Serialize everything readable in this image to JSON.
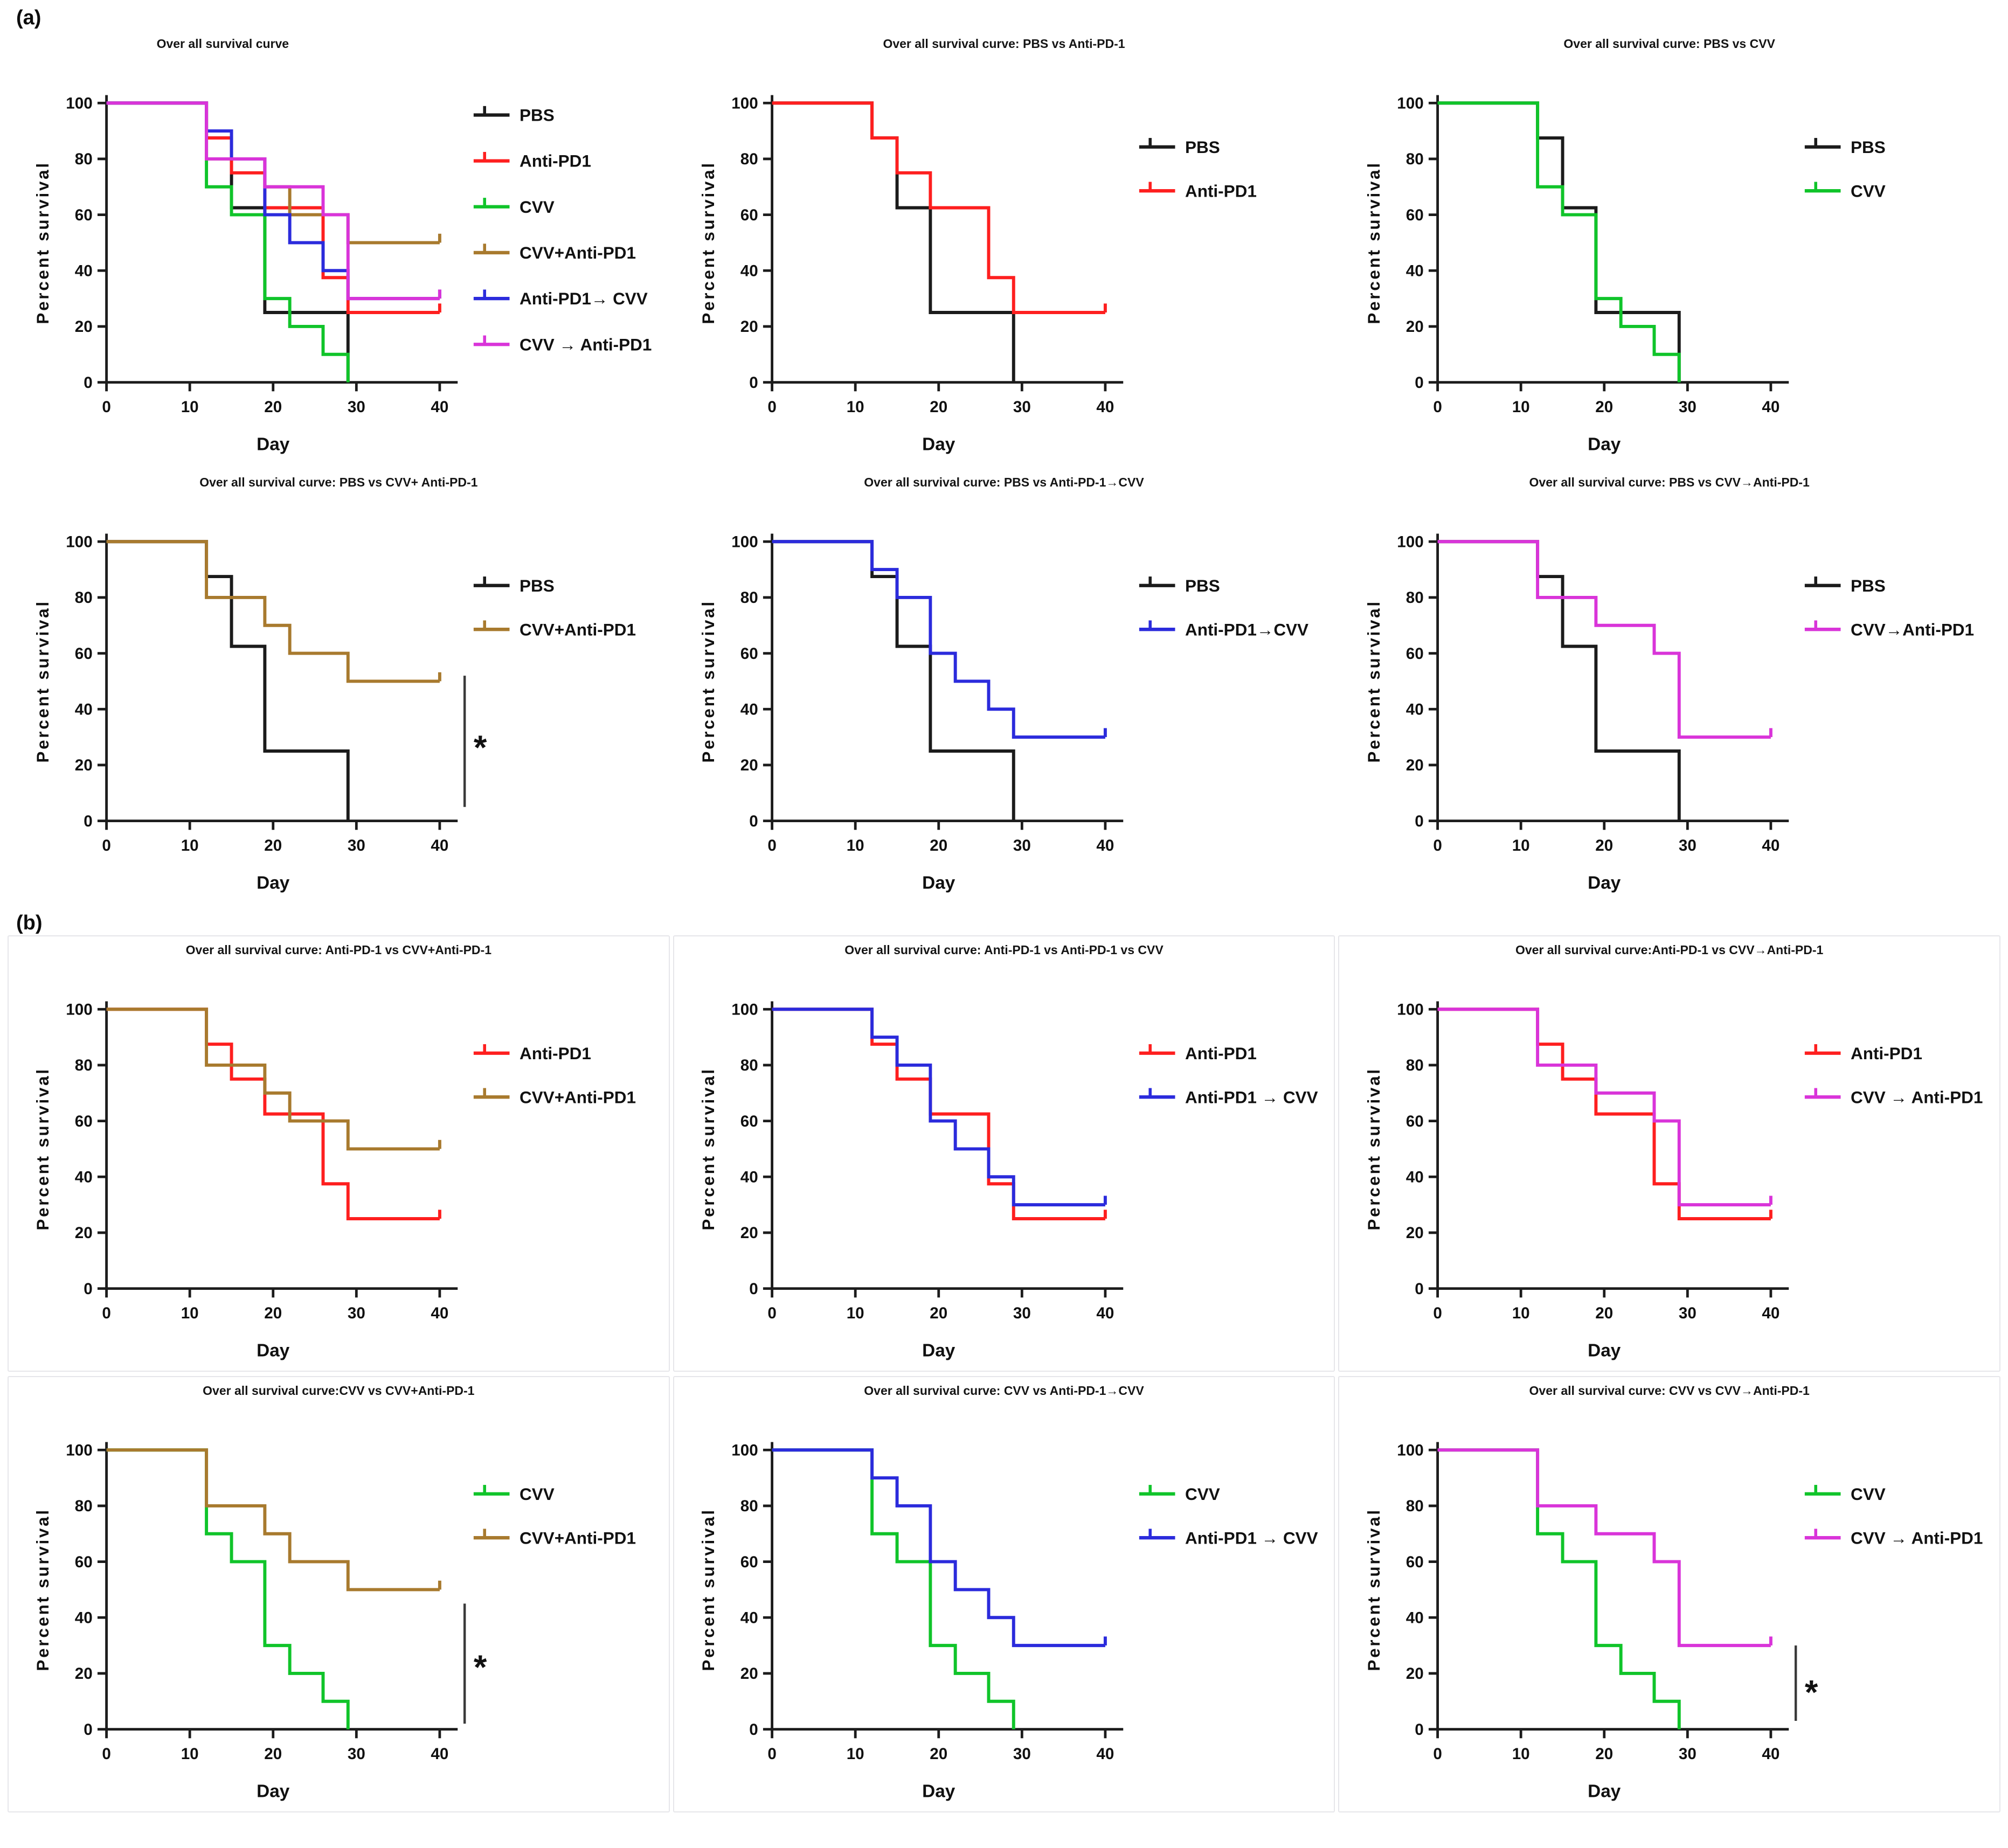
{
  "figure": {
    "section_a_label": "(a)",
    "section_b_label": "(b)",
    "axis": {
      "xlabel": "Day",
      "ylabel": "Percent survival",
      "x_ticks": [
        0,
        10,
        20,
        30,
        40
      ],
      "y_ticks": [
        0,
        20,
        40,
        60,
        80,
        100
      ],
      "xlim": [
        0,
        40
      ],
      "ylim": [
        0,
        100
      ],
      "axis_color": "#1c1c1c"
    }
  },
  "chart_data": {
    "type": "line",
    "subtype": "kaplan-meier-survival-grid",
    "xlabel": "Day",
    "ylabel": "Percent survival",
    "xlim": [
      0,
      40
    ],
    "ylim": [
      0,
      100
    ],
    "grid": false,
    "legend_position": "right",
    "significance_marker": "*",
    "groups": {
      "PBS": {
        "color": "#1b1b1b",
        "censored": false,
        "points": [
          [
            0,
            100
          ],
          [
            12,
            100
          ],
          [
            12,
            87.5
          ],
          [
            15,
            87.5
          ],
          [
            15,
            62.5
          ],
          [
            19,
            62.5
          ],
          [
            19,
            25
          ],
          [
            29,
            25
          ],
          [
            29,
            0
          ]
        ]
      },
      "Anti-PD1": {
        "color": "#fe1f1f",
        "censored": true,
        "points": [
          [
            0,
            100
          ],
          [
            12,
            100
          ],
          [
            12,
            87.5
          ],
          [
            15,
            87.5
          ],
          [
            15,
            75
          ],
          [
            19,
            75
          ],
          [
            19,
            62.5
          ],
          [
            26,
            62.5
          ],
          [
            26,
            37.5
          ],
          [
            29,
            37.5
          ],
          [
            29,
            25
          ],
          [
            40,
            25
          ]
        ]
      },
      "CVV": {
        "color": "#10c42a",
        "censored": false,
        "points": [
          [
            0,
            100
          ],
          [
            12,
            100
          ],
          [
            12,
            70
          ],
          [
            15,
            70
          ],
          [
            15,
            60
          ],
          [
            19,
            60
          ],
          [
            19,
            30
          ],
          [
            22,
            30
          ],
          [
            22,
            20
          ],
          [
            26,
            20
          ],
          [
            26,
            10
          ],
          [
            29,
            10
          ],
          [
            29,
            0
          ]
        ]
      },
      "CVV+Anti-PD1": {
        "color": "#a87a2e",
        "censored": true,
        "points": [
          [
            0,
            100
          ],
          [
            12,
            100
          ],
          [
            12,
            80
          ],
          [
            19,
            80
          ],
          [
            19,
            70
          ],
          [
            22,
            70
          ],
          [
            22,
            60
          ],
          [
            29,
            60
          ],
          [
            29,
            50
          ],
          [
            40,
            50
          ]
        ]
      },
      "Anti-PD1-CVV": {
        "color": "#2b2bdc",
        "censored": true,
        "points": [
          [
            0,
            100
          ],
          [
            12,
            100
          ],
          [
            12,
            90
          ],
          [
            15,
            90
          ],
          [
            15,
            80
          ],
          [
            19,
            80
          ],
          [
            19,
            60
          ],
          [
            22,
            60
          ],
          [
            22,
            50
          ],
          [
            26,
            50
          ],
          [
            26,
            40
          ],
          [
            29,
            40
          ],
          [
            29,
            30
          ],
          [
            40,
            30
          ]
        ]
      },
      "CVV-Anti-PD1": {
        "color": "#d934d9",
        "censored": true,
        "points": [
          [
            0,
            100
          ],
          [
            12,
            100
          ],
          [
            12,
            80
          ],
          [
            19,
            80
          ],
          [
            19,
            70
          ],
          [
            26,
            70
          ],
          [
            26,
            60
          ],
          [
            29,
            60
          ],
          [
            29,
            30
          ],
          [
            40,
            30
          ]
        ]
      }
    },
    "panels": [
      {
        "id": "a1",
        "section": "a",
        "row": 0,
        "title": "Over all survival curve",
        "title_align": "plot",
        "series": [
          {
            "group": "PBS",
            "label": "PBS"
          },
          {
            "group": "Anti-PD1",
            "label": "Anti-PD1"
          },
          {
            "group": "CVV",
            "label": "CVV"
          },
          {
            "group": "CVV+Anti-PD1",
            "label": "CVV+Anti-PD1"
          },
          {
            "group": "Anti-PD1-CVV",
            "label": "Anti-PD1→ CVV"
          },
          {
            "group": "CVV-Anti-PD1",
            "label": "CVV → Anti-PD1"
          }
        ],
        "significance": null
      },
      {
        "id": "a2",
        "section": "a",
        "row": 0,
        "title": "Over all survival curve: PBS vs Anti-PD-1",
        "title_align": "panel",
        "series": [
          {
            "group": "PBS",
            "label": "PBS"
          },
          {
            "group": "Anti-PD1",
            "label": "Anti-PD1"
          }
        ],
        "significance": null
      },
      {
        "id": "a3",
        "section": "a",
        "row": 0,
        "title": "Over all survival curve: PBS vs CVV",
        "title_align": "panel",
        "series": [
          {
            "group": "PBS",
            "label": "PBS"
          },
          {
            "group": "CVV",
            "label": "CVV"
          }
        ],
        "significance": null
      },
      {
        "id": "a4",
        "section": "a",
        "row": 1,
        "title": "Over all survival curve: PBS vs  CVV+ Anti-PD-1",
        "title_align": "panel",
        "series": [
          {
            "group": "PBS",
            "label": "PBS"
          },
          {
            "group": "CVV+Anti-PD1",
            "label": "CVV+Anti-PD1"
          }
        ],
        "significance": {
          "top": 52,
          "bottom": 5,
          "star": 26
        }
      },
      {
        "id": "a5",
        "section": "a",
        "row": 1,
        "title": "Over all survival curve: PBS vs Anti-PD-1→CVV",
        "title_align": "panel",
        "series": [
          {
            "group": "PBS",
            "label": "PBS"
          },
          {
            "group": "Anti-PD1-CVV",
            "label": "Anti-PD1→CVV"
          }
        ],
        "significance": null
      },
      {
        "id": "a6",
        "section": "a",
        "row": 1,
        "title": "Over all survival curve: PBS vs CVV→Anti-PD-1",
        "title_align": "panel",
        "series": [
          {
            "group": "PBS",
            "label": "PBS"
          },
          {
            "group": "CVV-Anti-PD1",
            "label": "CVV→Anti-PD1"
          }
        ],
        "significance": null
      },
      {
        "id": "b1",
        "section": "b",
        "row": 2,
        "title": "Over all survival curve: Anti-PD-1 vs CVV+Anti-PD-1",
        "title_align": "panel",
        "series": [
          {
            "group": "Anti-PD1",
            "label": "Anti-PD1"
          },
          {
            "group": "CVV+Anti-PD1",
            "label": "CVV+Anti-PD1"
          }
        ],
        "significance": null
      },
      {
        "id": "b2",
        "section": "b",
        "row": 2,
        "title": "Over all survival curve: Anti-PD-1 vs Anti-PD-1 vs CVV",
        "title_align": "panel",
        "series": [
          {
            "group": "Anti-PD1",
            "label": "Anti-PD1"
          },
          {
            "group": "Anti-PD1-CVV",
            "label": "Anti-PD1 → CVV"
          }
        ],
        "significance": null
      },
      {
        "id": "b3",
        "section": "b",
        "row": 2,
        "title": "Over all survival curve:Anti-PD-1 vs CVV→Anti-PD-1",
        "title_align": "panel",
        "series": [
          {
            "group": "Anti-PD1",
            "label": "Anti-PD1"
          },
          {
            "group": "CVV-Anti-PD1",
            "label": "CVV → Anti-PD1"
          }
        ],
        "significance": null
      },
      {
        "id": "b4",
        "section": "b",
        "row": 3,
        "title": "Over all survival curve:CVV vs CVV+Anti-PD-1",
        "title_align": "panel",
        "series": [
          {
            "group": "CVV",
            "label": "CVV"
          },
          {
            "group": "CVV+Anti-PD1",
            "label": "CVV+Anti-PD1"
          }
        ],
        "significance": {
          "top": 45,
          "bottom": 2,
          "star": 22
        }
      },
      {
        "id": "b5",
        "section": "b",
        "row": 3,
        "title": "Over all survival curve: CVV vs Anti-PD-1→CVV",
        "title_align": "panel",
        "series": [
          {
            "group": "CVV",
            "label": "CVV"
          },
          {
            "group": "Anti-PD1-CVV",
            "label": "Anti-PD1 → CVV"
          }
        ],
        "significance": null
      },
      {
        "id": "b6",
        "section": "b",
        "row": 3,
        "title": "Over all survival curve: CVV vs CVV→Anti-PD-1",
        "title_align": "panel",
        "series": [
          {
            "group": "CVV",
            "label": "CVV"
          },
          {
            "group": "CVV-Anti-PD1",
            "label": "CVV → Anti-PD1"
          }
        ],
        "significance": {
          "top": 30,
          "bottom": 3,
          "star": 13
        }
      }
    ]
  }
}
